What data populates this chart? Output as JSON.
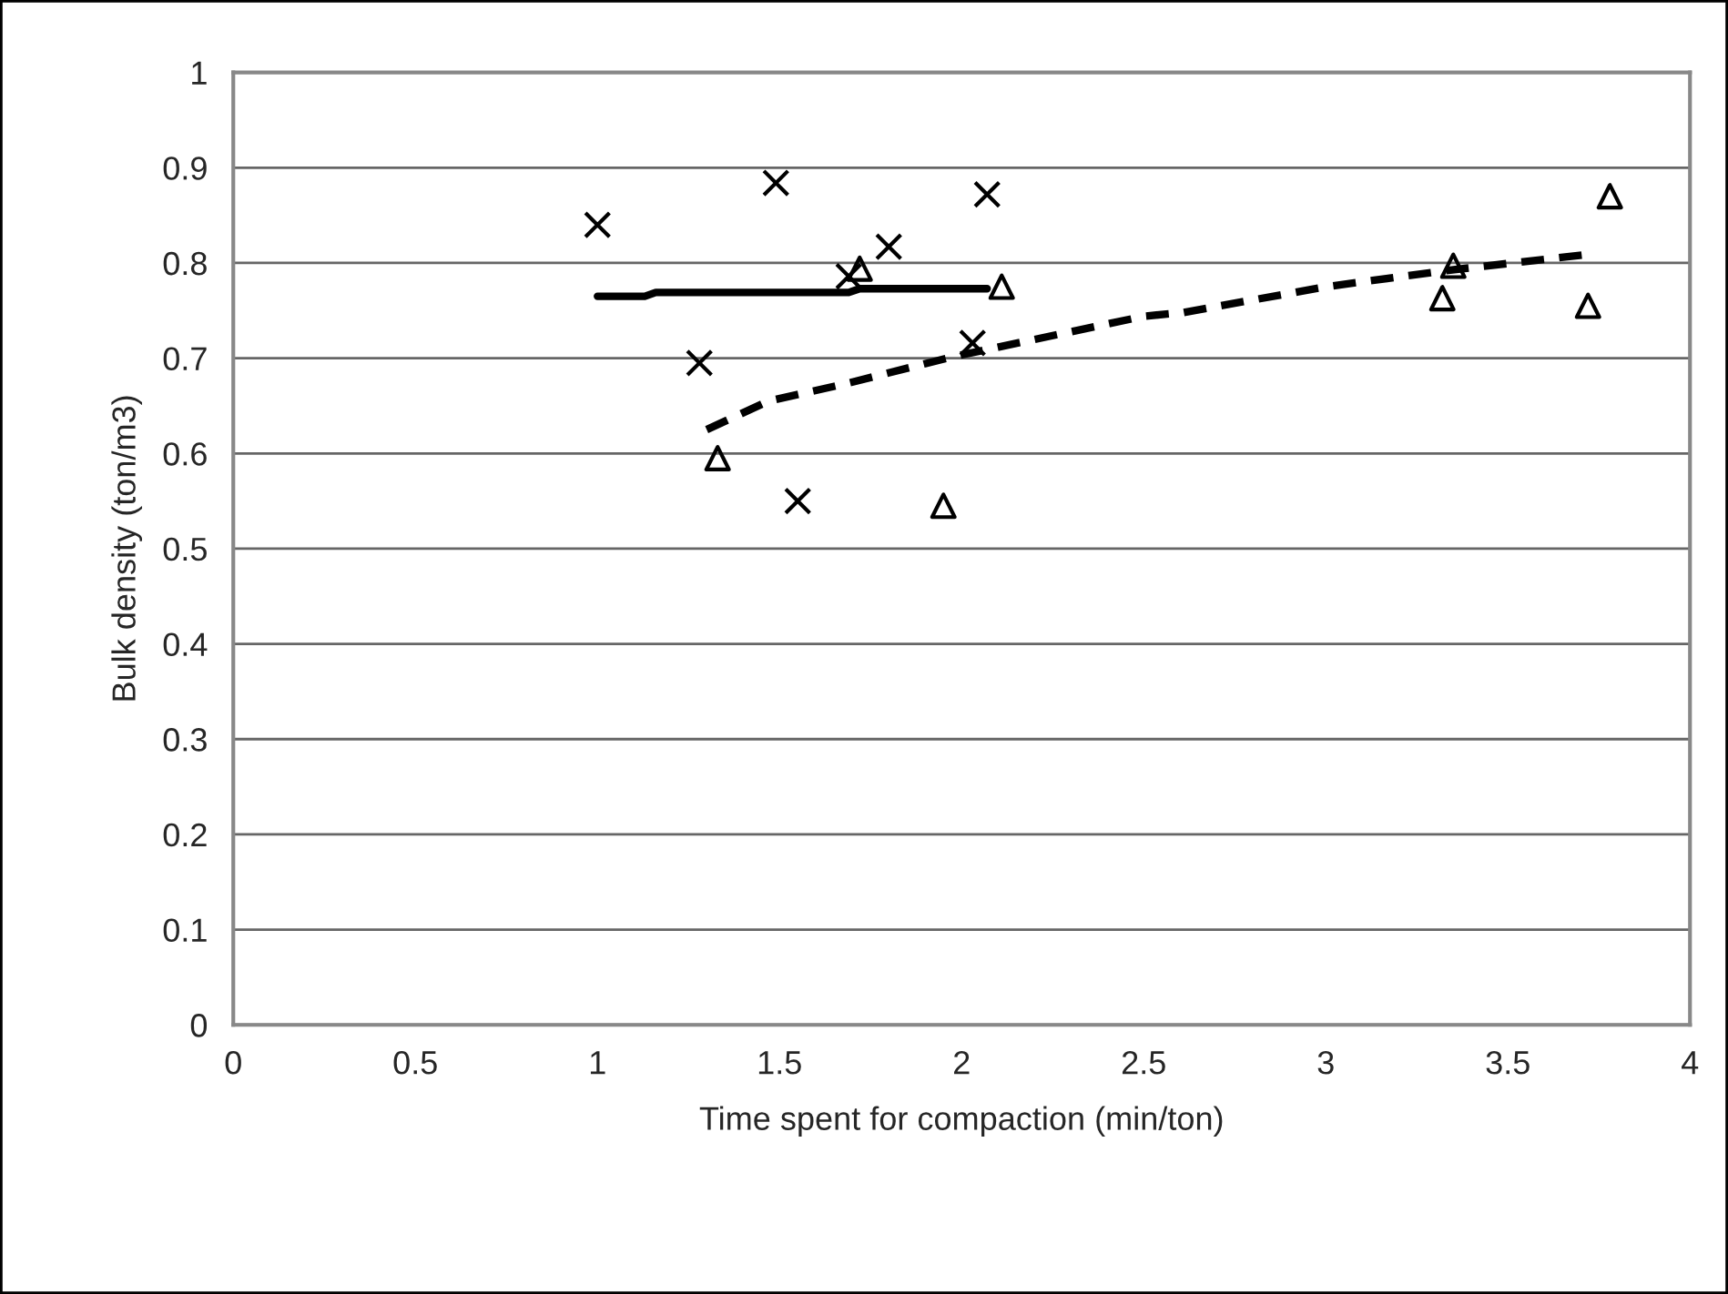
{
  "chart_data": {
    "type": "scatter",
    "xlabel": "Time spent for compaction (min/ton)",
    "ylabel": "Bulk density (ton/m3)",
    "xlim": [
      0,
      4
    ],
    "xticks": [
      0,
      0.5,
      1,
      1.5,
      2,
      2.5,
      3,
      3.5,
      4
    ],
    "ylim": [
      0,
      1
    ],
    "yticks": [
      0,
      0.1,
      0.2,
      0.3,
      0.4,
      0.5,
      0.6,
      0.7,
      0.8,
      0.9,
      1
    ],
    "grid": "y",
    "series": [
      {
        "type": "line",
        "color": "#000000",
        "line_style": "dashed",
        "marker": "none",
        "x": [
          1.3,
          1.47,
          1.68,
          1.97,
          2.5,
          2.61,
          3.0,
          3.33,
          3.72
        ],
        "values": [
          0.625,
          0.655,
          0.673,
          0.701,
          0.744,
          0.748,
          0.775,
          0.792,
          0.809
        ]
      },
      {
        "type": "line",
        "color": "#000000",
        "line_style": "solid",
        "marker": "none",
        "x": [
          1.0,
          1.13,
          1.16,
          1.69,
          1.72,
          2.07
        ],
        "values": [
          0.765,
          0.765,
          0.769,
          0.769,
          0.773,
          0.773
        ]
      },
      {
        "color": "#000000",
        "marker": "cross",
        "x": [
          1.0,
          1.49,
          1.28,
          1.55,
          1.69,
          1.8,
          2.07,
          2.03
        ],
        "values": [
          0.84,
          0.884,
          0.695,
          0.55,
          0.786,
          0.817,
          0.872,
          0.716
        ]
      },
      {
        "color": "#000000",
        "marker": "triangle",
        "x": [
          1.33,
          1.72,
          2.11,
          1.95,
          3.32,
          3.35,
          3.72,
          3.78
        ],
        "values": [
          0.595,
          0.794,
          0.775,
          0.545,
          0.763,
          0.797,
          0.755,
          0.87
        ]
      }
    ]
  }
}
